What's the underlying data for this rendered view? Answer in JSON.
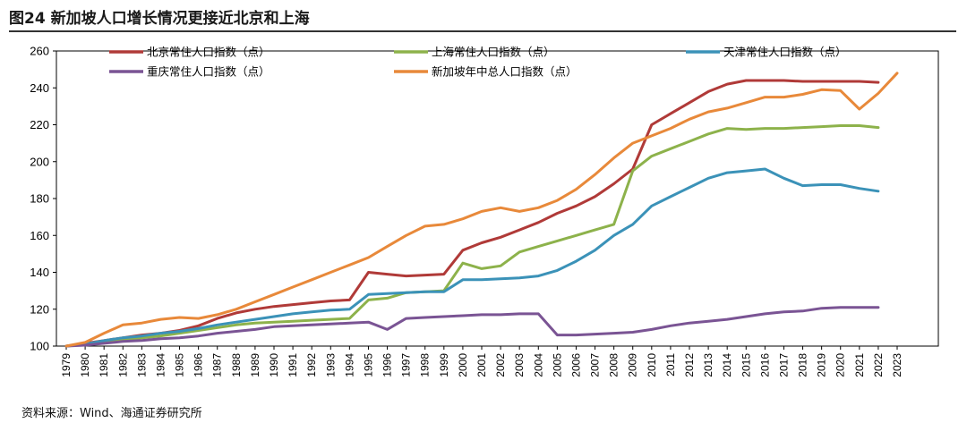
{
  "title": "图24 新加坡人口增长情况更接近北京和上海",
  "source": "资料来源：Wind、海通证券研究所",
  "chart_data": {
    "type": "line",
    "title": "",
    "xlabel": "",
    "ylabel": "",
    "ylim": [
      100,
      260
    ],
    "yticks": [
      100,
      120,
      140,
      160,
      180,
      200,
      220,
      240,
      260
    ],
    "grid": false,
    "legend_position": "top",
    "x": [
      1979,
      1980,
      1981,
      1982,
      1983,
      1984,
      1985,
      1986,
      1987,
      1988,
      1989,
      1990,
      1991,
      1992,
      1993,
      1994,
      1995,
      1996,
      1997,
      1998,
      1999,
      2000,
      2001,
      2002,
      2003,
      2004,
      2005,
      2006,
      2007,
      2008,
      2009,
      2010,
      2011,
      2012,
      2013,
      2014,
      2015,
      2016,
      2017,
      2018,
      2019,
      2020,
      2021,
      2022,
      2023
    ],
    "series": [
      {
        "name": "北京常住人口指数（点）",
        "color": "#b03a38",
        "values": [
          100,
          101.5,
          103,
          104.5,
          106,
          107,
          108.5,
          111,
          115,
          118,
          120,
          121.5,
          122.5,
          123.5,
          124.5,
          125,
          140,
          139,
          138,
          138.5,
          139,
          152,
          156,
          159,
          163,
          167,
          172,
          176,
          181,
          188,
          196,
          220,
          226,
          232,
          238,
          242,
          244,
          244,
          244,
          243.5,
          243.5,
          243.5,
          243.5,
          243,
          null
        ]
      },
      {
        "name": "上海常住人口指数（点）",
        "color": "#8db24b",
        "values": [
          100,
          101,
          102.5,
          103.5,
          104.5,
          105.5,
          107,
          108.5,
          110,
          111.5,
          112.5,
          113,
          113.5,
          114,
          114.5,
          115,
          125,
          126,
          129,
          129.5,
          130,
          145,
          142,
          143.5,
          151,
          154,
          157,
          160,
          163,
          166,
          195,
          203,
          207,
          211,
          215,
          218,
          217.5,
          218,
          218,
          218.5,
          219,
          219.5,
          219.5,
          218.5,
          null
        ]
      },
      {
        "name": "天津常住人口指数（点）",
        "color": "#3b92b8",
        "values": [
          100,
          101,
          103,
          104.5,
          105.5,
          107,
          108,
          109.5,
          111.5,
          113,
          114.5,
          116,
          117.5,
          118.5,
          119.5,
          120,
          128,
          128.5,
          129,
          129.5,
          129.5,
          136,
          136,
          136.5,
          137,
          138,
          141,
          146,
          152,
          160,
          166,
          176,
          181,
          186,
          191,
          194,
          195,
          196,
          191,
          187,
          187.5,
          187.5,
          185.5,
          184,
          null
        ]
      },
      {
        "name": "重庆常住人口指数（点）",
        "color": "#7a5494",
        "values": [
          100,
          100.5,
          101.5,
          102.5,
          103,
          104,
          104.5,
          105.5,
          107,
          108,
          109,
          110.5,
          111,
          111.5,
          112,
          112.5,
          113,
          109,
          115,
          115.5,
          116,
          116.5,
          117,
          117,
          117.5,
          117.5,
          106,
          106,
          106.5,
          107,
          107.5,
          109,
          111,
          112.5,
          113.5,
          114.5,
          116,
          117.5,
          118.5,
          119,
          120.5,
          121,
          121,
          121,
          null
        ]
      },
      {
        "name": "新加坡年中总人口指数（点）",
        "color": "#e8893a",
        "values": [
          100,
          102,
          107,
          111.5,
          112.5,
          114.5,
          115.5,
          115,
          117,
          120,
          124,
          128,
          132,
          136,
          140,
          144,
          148,
          154,
          160,
          165,
          166,
          169,
          173,
          175,
          173,
          175,
          179,
          185,
          193,
          202,
          210,
          214,
          218,
          223,
          227,
          229,
          232,
          235,
          235,
          236.5,
          239,
          238.5,
          228.5,
          237,
          248
        ]
      }
    ]
  }
}
